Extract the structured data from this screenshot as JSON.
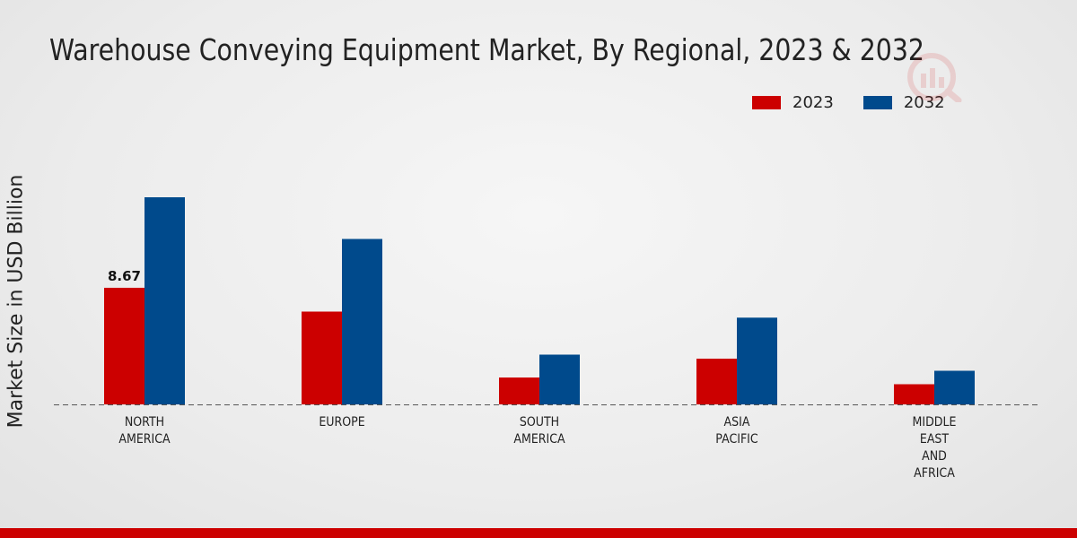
{
  "chart_data": {
    "type": "bar",
    "title": "Warehouse Conveying Equipment Market, By Regional, 2023 & 2032",
    "ylabel": "Market Size in USD Billion",
    "xlabel": "",
    "categories": [
      [
        "NORTH",
        "AMERICA"
      ],
      [
        "EUROPE"
      ],
      [
        "SOUTH",
        "AMERICA"
      ],
      [
        "ASIA",
        "PACIFIC"
      ],
      [
        "MIDDLE",
        "EAST",
        "AND",
        "AFRICA"
      ]
    ],
    "series": [
      {
        "name": "2023",
        "color": "#cc0000",
        "values": [
          8.67,
          6.9,
          2.0,
          3.4,
          1.5
        ]
      },
      {
        "name": "2032",
        "color": "#004a8c",
        "values": [
          15.4,
          12.3,
          3.7,
          6.45,
          2.5
        ]
      }
    ],
    "data_labels": [
      {
        "series": 0,
        "index": 0,
        "text": "8.67"
      }
    ],
    "ylim": [
      0,
      20
    ],
    "grid": false,
    "legend": "top-right"
  },
  "colors": {
    "accent": "#cc0000",
    "bottom_bar": "#cc0000"
  }
}
